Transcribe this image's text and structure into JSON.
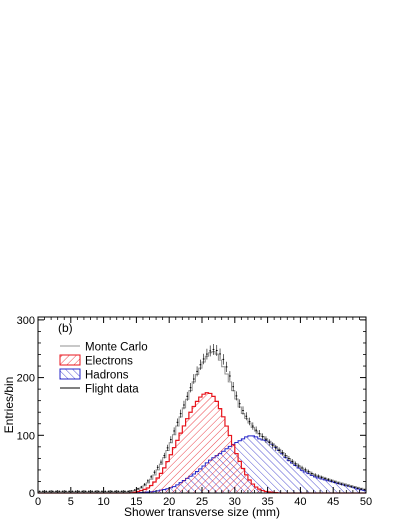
{
  "chart_data": {
    "type": "histogram",
    "panel_label": "(b)",
    "xlabel": "Shower transverse size (mm)",
    "ylabel": "Entries/bin",
    "xlim": [
      0,
      50
    ],
    "ylim": [
      0,
      305
    ],
    "xticks": [
      0,
      5,
      10,
      15,
      20,
      25,
      30,
      35,
      40,
      45,
      50
    ],
    "yticks": [
      0,
      100,
      200,
      300
    ],
    "bin_width": 0.5,
    "legend_position": "top-left",
    "legend": [
      {
        "label": "Monte Carlo",
        "key": "mc"
      },
      {
        "label": "Electrons",
        "key": "electrons"
      },
      {
        "label": "Hadrons",
        "key": "hadrons"
      },
      {
        "label": "Flight data",
        "key": "data"
      }
    ],
    "colors": {
      "mc": "#909090",
      "electrons": "#e8141c",
      "hadrons": "#2424c8",
      "data": "#000000"
    },
    "series": {
      "electrons": {
        "name": "Electrons",
        "x": [
          14.0,
          15.0,
          16.0,
          17.0,
          18.0,
          19.0,
          20.0,
          21.0,
          22.0,
          23.0,
          24.0,
          25.0,
          26.0,
          27.0,
          28.0,
          29.0,
          30.0,
          31.0,
          32.0,
          33.0,
          34.0,
          35.0,
          36.0,
          37.0,
          38.0,
          39.0,
          40.0
        ],
        "y": [
          0,
          2,
          5,
          10,
          22,
          38,
          60,
          85,
          110,
          135,
          155,
          170,
          175,
          165,
          140,
          108,
          75,
          48,
          26,
          12,
          5,
          2,
          1,
          0,
          0,
          0,
          0
        ]
      },
      "hadrons": {
        "name": "Hadrons",
        "x": [
          14.0,
          16.0,
          18.0,
          20.0,
          21.0,
          22.0,
          23.0,
          24.0,
          25.0,
          26.0,
          27.0,
          28.0,
          29.0,
          30.0,
          31.0,
          32.0,
          33.0,
          34.0,
          35.0,
          36.0,
          37.0,
          38.0,
          39.0,
          40.0,
          41.0,
          42.0,
          43.0,
          44.0,
          45.0,
          46.0,
          47.0,
          48.0,
          49.0,
          50.0
        ],
        "y": [
          0,
          1,
          3,
          8,
          12,
          20,
          27,
          35,
          44,
          55,
          63,
          70,
          79,
          86,
          92,
          99,
          99,
          92,
          91,
          82,
          71,
          58,
          50,
          41,
          35,
          29,
          25,
          22,
          19,
          16,
          13,
          10,
          6,
          4
        ]
      },
      "monte_carlo": {
        "name": "Monte Carlo",
        "x": [
          14.0,
          15.0,
          16.0,
          17.0,
          18.0,
          19.0,
          20.0,
          21.0,
          22.0,
          23.0,
          24.0,
          25.0,
          26.0,
          27.0,
          28.0,
          29.0,
          30.0,
          31.0,
          32.0,
          33.0,
          34.0,
          35.0,
          36.0,
          37.0,
          38.0,
          39.0,
          40.0,
          42.0,
          44.0,
          46.0,
          48.0,
          50.0
        ],
        "y": [
          2,
          5,
          10,
          20,
          35,
          55,
          80,
          108,
          140,
          170,
          200,
          222,
          242,
          246,
          225,
          200,
          170,
          142,
          125,
          110,
          100,
          92,
          83,
          73,
          62,
          53,
          45,
          32,
          25,
          18,
          12,
          6
        ]
      },
      "flight_data": {
        "name": "Flight data",
        "x": [
          14.0,
          15.0,
          16.0,
          17.0,
          18.0,
          19.0,
          20.0,
          21.0,
          22.0,
          23.0,
          24.0,
          25.0,
          26.0,
          27.0,
          28.0,
          29.0,
          30.0,
          31.0,
          32.0,
          33.0,
          34.0,
          35.0,
          36.0,
          37.0,
          38.0,
          39.0,
          40.0,
          42.0,
          44.0,
          46.0,
          48.0,
          50.0
        ],
        "y": [
          3,
          6,
          12,
          24,
          40,
          58,
          85,
          115,
          145,
          175,
          205,
          228,
          245,
          250,
          238,
          212,
          175,
          148,
          128,
          112,
          100,
          90,
          80,
          72,
          62,
          52,
          45,
          32,
          24,
          16,
          10,
          5
        ]
      }
    }
  }
}
